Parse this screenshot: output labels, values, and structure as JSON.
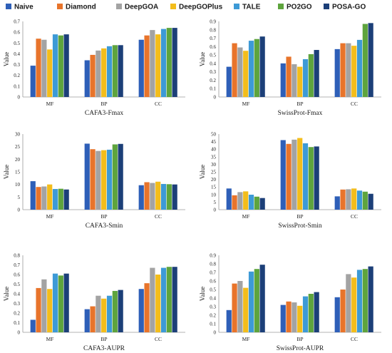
{
  "legend": [
    {
      "name": "Naive",
      "color": "#2e5fb8"
    },
    {
      "name": "Diamond",
      "color": "#e8742b"
    },
    {
      "name": "DeepGOA",
      "color": "#a3a3a3"
    },
    {
      "name": "DeepGOPlus",
      "color": "#f3bd1b"
    },
    {
      "name": "TALE",
      "color": "#3d9ad6"
    },
    {
      "name": "PO2GO",
      "color": "#5ea43d"
    },
    {
      "name": "POSA-GO",
      "color": "#1c3f78"
    }
  ],
  "chart_data": [
    {
      "type": "bar",
      "title": "CAFA3-Fmax",
      "ylabel": "Value",
      "categories": [
        "MF",
        "BP",
        "CC"
      ],
      "ylim": [
        0,
        0.7
      ],
      "yticks": [
        0,
        0.1,
        0.2,
        0.3,
        0.4,
        0.5,
        0.6,
        0.7
      ],
      "series": [
        {
          "name": "Naive",
          "values": [
            0.29,
            0.34,
            0.53
          ]
        },
        {
          "name": "Diamond",
          "values": [
            0.54,
            0.39,
            0.57
          ]
        },
        {
          "name": "DeepGOA",
          "values": [
            0.53,
            0.43,
            0.62
          ]
        },
        {
          "name": "DeepGOPlus",
          "values": [
            0.44,
            0.45,
            0.58
          ]
        },
        {
          "name": "TALE",
          "values": [
            0.58,
            0.47,
            0.63
          ]
        },
        {
          "name": "PO2GO",
          "values": [
            0.57,
            0.48,
            0.64
          ]
        },
        {
          "name": "POSA-GO",
          "values": [
            0.58,
            0.48,
            0.64
          ]
        }
      ]
    },
    {
      "type": "bar",
      "title": "SwissProt-Fmax",
      "ylabel": "Value",
      "categories": [
        "MF",
        "BP",
        "CC"
      ],
      "ylim": [
        0,
        0.9
      ],
      "yticks": [
        0,
        0.1,
        0.2,
        0.3,
        0.4,
        0.5,
        0.6,
        0.7,
        0.8,
        0.9
      ],
      "series": [
        {
          "name": "Naive",
          "values": [
            0.36,
            0.4,
            0.57
          ]
        },
        {
          "name": "Diamond",
          "values": [
            0.64,
            0.48,
            0.64
          ]
        },
        {
          "name": "DeepGOA",
          "values": [
            0.59,
            0.39,
            0.64
          ]
        },
        {
          "name": "DeepGOPlus",
          "values": [
            0.55,
            0.36,
            0.61
          ]
        },
        {
          "name": "TALE",
          "values": [
            0.67,
            0.45,
            0.68
          ]
        },
        {
          "name": "PO2GO",
          "values": [
            0.69,
            0.51,
            0.87
          ]
        },
        {
          "name": "POSA-GO",
          "values": [
            0.72,
            0.56,
            0.88
          ]
        }
      ]
    },
    {
      "type": "bar",
      "title": "CAFA3-Smin",
      "ylabel": "Value",
      "categories": [
        "MF",
        "BP",
        "CC"
      ],
      "ylim": [
        0,
        30
      ],
      "yticks": [
        0,
        5,
        10,
        15,
        20,
        25,
        30
      ],
      "series": [
        {
          "name": "Naive",
          "values": [
            11.3,
            26.2,
            9.7
          ]
        },
        {
          "name": "Diamond",
          "values": [
            9.0,
            24.0,
            10.9
          ]
        },
        {
          "name": "DeepGOA",
          "values": [
            9.2,
            23.3,
            10.6
          ]
        },
        {
          "name": "DeepGOPlus",
          "values": [
            10.0,
            23.6,
            11.1
          ]
        },
        {
          "name": "TALE",
          "values": [
            8.2,
            23.8,
            10.2
          ]
        },
        {
          "name": "PO2GO",
          "values": [
            8.3,
            25.9,
            10.1
          ]
        },
        {
          "name": "POSA-GO",
          "values": [
            8.0,
            26.1,
            10.0
          ]
        }
      ]
    },
    {
      "type": "bar",
      "title": "SwissProt-Smin",
      "ylabel": "Value",
      "categories": [
        "MF",
        "BP",
        "CC"
      ],
      "ylim": [
        0,
        50
      ],
      "yticks": [
        0,
        5,
        10,
        15,
        20,
        25,
        30,
        35,
        40,
        45,
        50
      ],
      "series": [
        {
          "name": "Naive",
          "values": [
            14.0,
            46.0,
            8.8
          ]
        },
        {
          "name": "Diamond",
          "values": [
            9.5,
            43.5,
            13.3
          ]
        },
        {
          "name": "DeepGOA",
          "values": [
            11.6,
            46.3,
            13.5
          ]
        },
        {
          "name": "DeepGOPlus",
          "values": [
            12.1,
            47.4,
            14.0
          ]
        },
        {
          "name": "TALE",
          "values": [
            9.9,
            43.9,
            12.6
          ]
        },
        {
          "name": "PO2GO",
          "values": [
            8.6,
            41.4,
            11.9
          ]
        },
        {
          "name": "POSA-GO",
          "values": [
            7.7,
            41.8,
            10.5
          ]
        }
      ]
    },
    {
      "type": "bar",
      "title": "CAFA3-AUPR",
      "ylabel": "Value",
      "categories": [
        "MF",
        "BP",
        "CC"
      ],
      "ylim": [
        0,
        0.8
      ],
      "yticks": [
        0,
        0.1,
        0.2,
        0.3,
        0.4,
        0.5,
        0.6,
        0.7,
        0.8
      ],
      "series": [
        {
          "name": "Naive",
          "values": [
            0.13,
            0.24,
            0.45
          ]
        },
        {
          "name": "Diamond",
          "values": [
            0.46,
            0.27,
            0.51
          ]
        },
        {
          "name": "DeepGOA",
          "values": [
            0.55,
            0.38,
            0.67
          ]
        },
        {
          "name": "DeepGOPlus",
          "values": [
            0.45,
            0.35,
            0.6
          ]
        },
        {
          "name": "TALE",
          "values": [
            0.61,
            0.38,
            0.67
          ]
        },
        {
          "name": "PO2GO",
          "values": [
            0.59,
            0.43,
            0.68
          ]
        },
        {
          "name": "POSA-GO",
          "values": [
            0.61,
            0.44,
            0.68
          ]
        }
      ]
    },
    {
      "type": "bar",
      "title": "SwissProt-AUPR",
      "ylabel": "Value",
      "categories": [
        "MF",
        "BP",
        "CC"
      ],
      "ylim": [
        0,
        0.9
      ],
      "yticks": [
        0,
        0.1,
        0.2,
        0.3,
        0.4,
        0.5,
        0.6,
        0.7,
        0.8,
        0.9
      ],
      "series": [
        {
          "name": "Naive",
          "values": [
            0.26,
            0.32,
            0.41
          ]
        },
        {
          "name": "Diamond",
          "values": [
            0.57,
            0.36,
            0.5
          ]
        },
        {
          "name": "DeepGOA",
          "values": [
            0.6,
            0.35,
            0.68
          ]
        },
        {
          "name": "DeepGOPlus",
          "values": [
            0.52,
            0.31,
            0.64
          ]
        },
        {
          "name": "TALE",
          "values": [
            0.71,
            0.42,
            0.73
          ]
        },
        {
          "name": "PO2GO",
          "values": [
            0.74,
            0.45,
            0.74
          ]
        },
        {
          "name": "POSA-GO",
          "values": [
            0.79,
            0.47,
            0.77
          ]
        }
      ]
    }
  ]
}
